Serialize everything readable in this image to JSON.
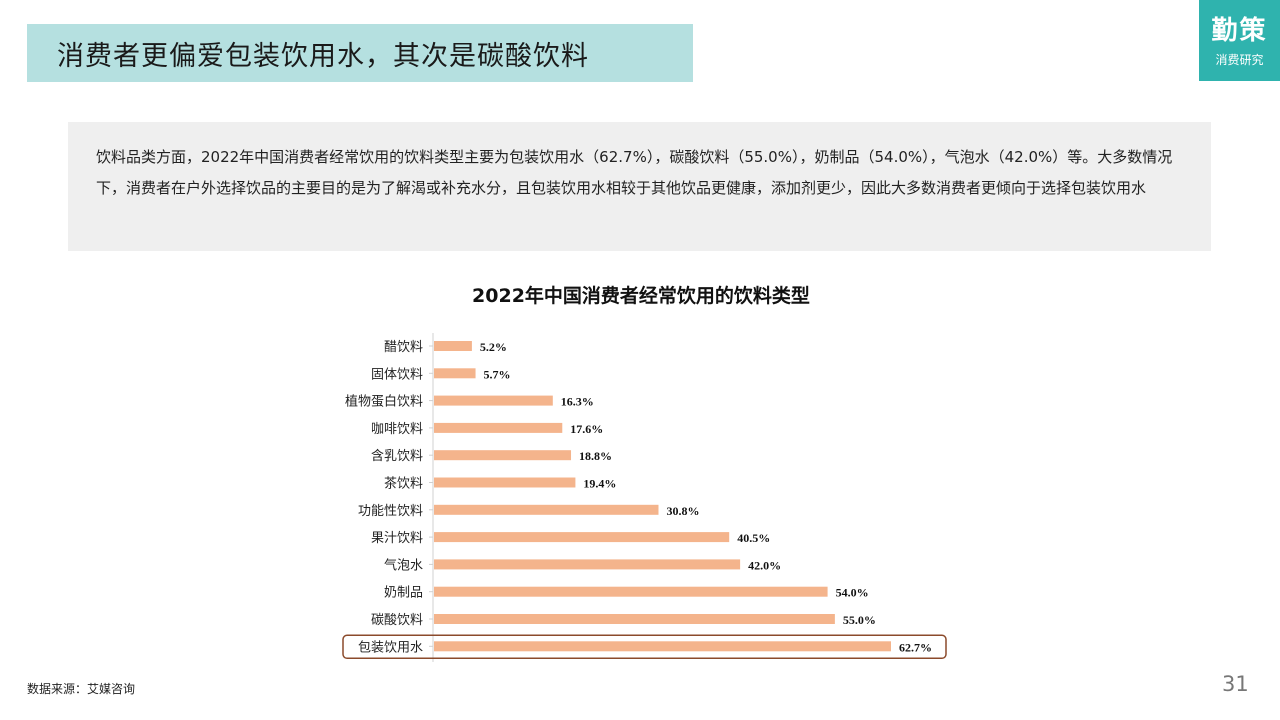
{
  "header": {
    "title": "消费者更偏爱包装饮用水，其次是碳酸饮料",
    "logo_main": "勤策",
    "logo_sub": "消费研究"
  },
  "summary": {
    "text": "饮料品类方面，2022年中国消费者经常饮用的饮料类型主要为包装饮用水（62.7%），碳酸饮料（55.0%），奶制品（54.0%），气泡水（42.0%）等。大多数情况下，消费者在户外选择饮品的主要目的是为了解渴或补充水分，且包装饮用水相较于其他饮品更健康，添加剂更少，因此大多数消费者更倾向于选择包装饮用水"
  },
  "footer": {
    "source": "数据来源：艾媒咨询",
    "page_number": "31"
  },
  "colors": {
    "title_bg": "#b5e0e0",
    "logo_bg": "#2fb3ae",
    "bar": "#f4b48c",
    "highlight_border": "#8b4a2b",
    "summary_bg": "#efefef"
  },
  "chart_data": {
    "type": "bar",
    "orientation": "horizontal",
    "title": "2022年中国消费者经常饮用的饮料类型",
    "categories": [
      "醋饮料",
      "固体饮料",
      "植物蛋白饮料",
      "咖啡饮料",
      "含乳饮料",
      "茶饮料",
      "功能性饮料",
      "果汁饮料",
      "气泡水",
      "奶制品",
      "碳酸饮料",
      "包装饮用水"
    ],
    "values": [
      5.2,
      5.7,
      16.3,
      17.6,
      18.8,
      19.4,
      30.8,
      40.5,
      42.0,
      54.0,
      55.0,
      62.7
    ],
    "labels": [
      "5.2%",
      "5.7%",
      "16.3%",
      "17.6%",
      "18.8%",
      "19.4%",
      "30.8%",
      "40.5%",
      "42.0%",
      "54.0%",
      "55.0%",
      "62.7%"
    ],
    "unit": "%",
    "xlim": [
      0,
      70
    ],
    "grid": false,
    "highlight": "包装饮用水"
  }
}
